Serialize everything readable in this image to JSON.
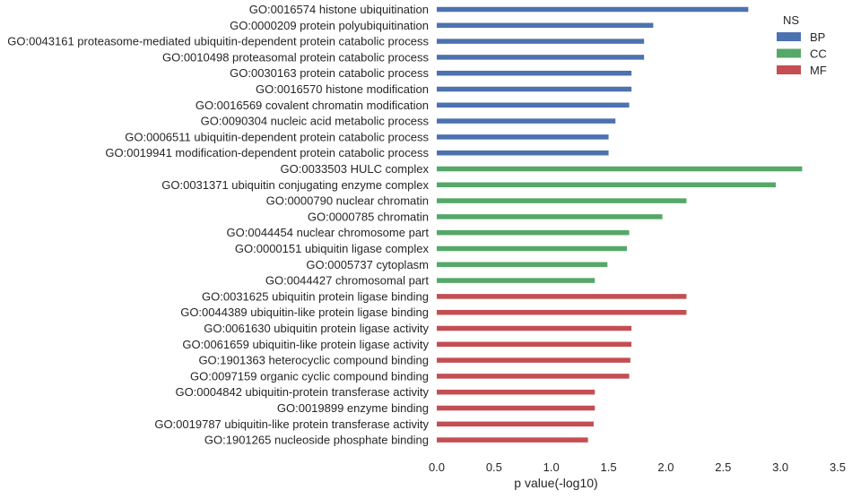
{
  "chart_data": {
    "type": "bar",
    "orientation": "horizontal",
    "xlabel": "p value(-log10)",
    "ylabel": "",
    "xlim": [
      0,
      3.5
    ],
    "xticks": [
      "0.0",
      "0.5",
      "1.0",
      "1.5",
      "2.0",
      "2.5",
      "3.0",
      "3.5"
    ],
    "grid": false,
    "legend": {
      "title": "NS",
      "placement": "top-right",
      "entries": [
        {
          "label": "BP",
          "color": "#4c72b0"
        },
        {
          "label": "CC",
          "color": "#55a868"
        },
        {
          "label": "MF",
          "color": "#c44e52"
        }
      ]
    },
    "categories": [
      {
        "label": "GO:0016574 histone ubiquitination",
        "ns": "BP",
        "value": 2.72
      },
      {
        "label": "GO:0000209 protein polyubiquitination",
        "ns": "BP",
        "value": 1.89
      },
      {
        "label": "GO:0043161 proteasome-mediated ubiquitin-dependent protein catabolic process",
        "ns": "BP",
        "value": 1.81
      },
      {
        "label": "GO:0010498 proteasomal protein catabolic process",
        "ns": "BP",
        "value": 1.81
      },
      {
        "label": "GO:0030163 protein catabolic process",
        "ns": "BP",
        "value": 1.7
      },
      {
        "label": "GO:0016570 histone modification",
        "ns": "BP",
        "value": 1.7
      },
      {
        "label": "GO:0016569 covalent chromatin modification",
        "ns": "BP",
        "value": 1.68
      },
      {
        "label": "GO:0090304 nucleic acid metabolic process",
        "ns": "BP",
        "value": 1.56
      },
      {
        "label": "GO:0006511 ubiquitin-dependent protein catabolic process",
        "ns": "BP",
        "value": 1.5
      },
      {
        "label": "GO:0019941 modification-dependent protein catabolic process",
        "ns": "BP",
        "value": 1.5
      },
      {
        "label": "GO:0033503 HULC complex",
        "ns": "CC",
        "value": 3.19
      },
      {
        "label": "GO:0031371 ubiquitin conjugating enzyme complex",
        "ns": "CC",
        "value": 2.96
      },
      {
        "label": "GO:0000790 nuclear chromatin",
        "ns": "CC",
        "value": 2.18
      },
      {
        "label": "GO:0000785 chromatin",
        "ns": "CC",
        "value": 1.97
      },
      {
        "label": "GO:0044454 nuclear chromosome part",
        "ns": "CC",
        "value": 1.68
      },
      {
        "label": "GO:0000151 ubiquitin ligase complex",
        "ns": "CC",
        "value": 1.66
      },
      {
        "label": "GO:0005737 cytoplasm",
        "ns": "CC",
        "value": 1.49
      },
      {
        "label": "GO:0044427 chromosomal part",
        "ns": "CC",
        "value": 1.38
      },
      {
        "label": "GO:0031625 ubiquitin protein ligase binding",
        "ns": "MF",
        "value": 2.18
      },
      {
        "label": "GO:0044389 ubiquitin-like protein ligase binding",
        "ns": "MF",
        "value": 2.18
      },
      {
        "label": "GO:0061630 ubiquitin protein ligase activity",
        "ns": "MF",
        "value": 1.7
      },
      {
        "label": "GO:0061659 ubiquitin-like protein ligase activity",
        "ns": "MF",
        "value": 1.7
      },
      {
        "label": "GO:1901363 heterocyclic compound binding",
        "ns": "MF",
        "value": 1.69
      },
      {
        "label": "GO:0097159 organic cyclic compound binding",
        "ns": "MF",
        "value": 1.68
      },
      {
        "label": "GO:0004842 ubiquitin-protein transferase activity",
        "ns": "MF",
        "value": 1.38
      },
      {
        "label": "GO:0019899 enzyme binding",
        "ns": "MF",
        "value": 1.38
      },
      {
        "label": "GO:0019787 ubiquitin-like protein transferase activity",
        "ns": "MF",
        "value": 1.37
      },
      {
        "label": "GO:1901265 nucleoside phosphate binding",
        "ns": "MF",
        "value": 1.32
      }
    ]
  }
}
